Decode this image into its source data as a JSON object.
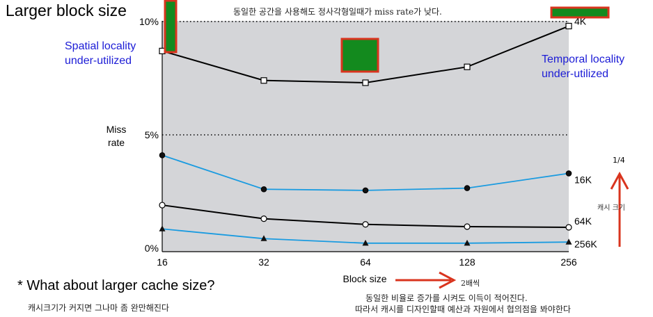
{
  "slide": {
    "title": "Larger block size",
    "top_note": "동일한 공간을 사용해도 정사각형일때가 miss rate가 낮다.",
    "spatial_note": [
      "Spatial locality",
      "under-utilized"
    ],
    "temporal_note": [
      "Temporal locality",
      "under-utilized"
    ],
    "question": "* What about larger cache size?",
    "bottom_left_note": "캐시크기가 커지면 그나마 좀 완만해진다",
    "bottom_right_note1": "동일한 비율로 증가를 시켜도 이득이 적어진다.",
    "bottom_right_note2": "따라서 캐시를 디자인할때 예산과 자원에서 협의점을 봐야한다",
    "two_times": "2배씩",
    "quarter": "1/4",
    "cache_size_label": "캐시 크기",
    "colors": {
      "note_blue": "#1c1cd6",
      "arrow_red": "#d9341e",
      "marker_green": "#138a1e",
      "marker_border": "#d9341e",
      "plot_bg": "#d4d5d8",
      "series_blue": "#1a9be0",
      "series_black": "#000000"
    }
  },
  "chart_data": {
    "type": "line",
    "x": [
      16,
      32,
      64,
      128,
      256
    ],
    "x_scale": "log2",
    "xlabel": "Block size",
    "ylabel": "Miss rate",
    "ylabel_lines": [
      "Miss",
      "rate"
    ],
    "y_ticks": [
      "0%",
      "5%",
      "10%"
    ],
    "y_tick_values": [
      0,
      5,
      10
    ],
    "ylim": [
      0,
      10
    ],
    "grid": "dotted lines at 5% and 10%",
    "series": [
      {
        "name": "4K",
        "marker": "square",
        "color": "#000000",
        "values": [
          8.7,
          7.4,
          7.3,
          8.0,
          9.8
        ]
      },
      {
        "name": "16K",
        "marker": "filled-circle",
        "color": "#1a9be0",
        "values": [
          4.1,
          2.6,
          2.55,
          2.65,
          3.3
        ]
      },
      {
        "name": "64K",
        "marker": "open-circle",
        "color": "#000000",
        "values": [
          1.9,
          1.3,
          1.05,
          0.95,
          0.92
        ]
      },
      {
        "name": "256K",
        "marker": "triangle",
        "color": "#1a9be0",
        "values": [
          0.85,
          0.42,
          0.22,
          0.22,
          0.27
        ]
      }
    ]
  }
}
